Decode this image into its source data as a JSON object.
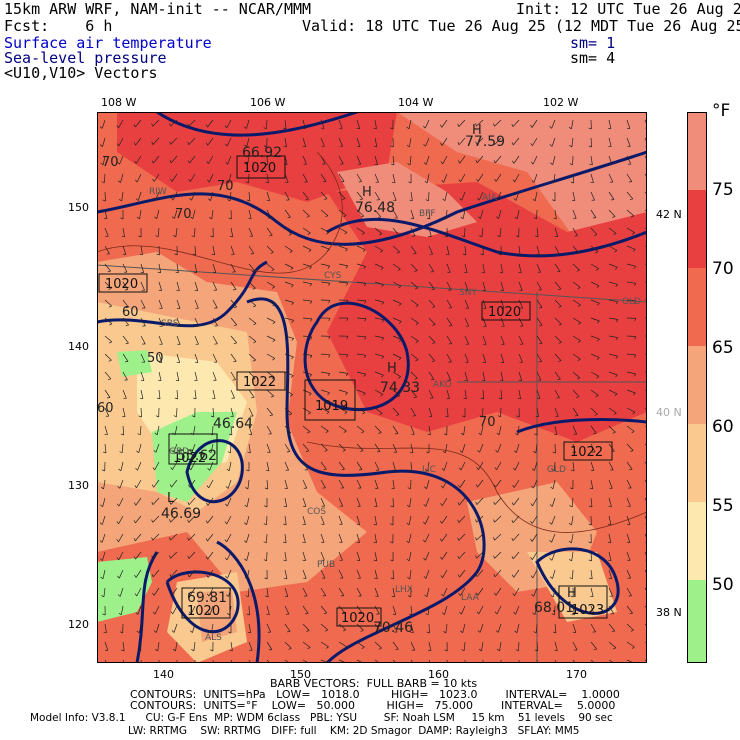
{
  "header": {
    "line1_left": "15km ARW WRF, NAM-init -- NCAR/MMM",
    "line1_right": "Init: 12 UTC Tue 26 Aug 25",
    "fcst": "Fcst:    6 h",
    "valid": "Valid: 18 UTC Tue 26 Aug 25 (12 MDT Tue 26 Aug 25)",
    "fields": [
      {
        "name": "Surface air temperature",
        "color": "#0000c8",
        "sm": ""
      },
      {
        "name": "Sea-level pressure",
        "color": "#000080",
        "sm": "sm= 1"
      },
      {
        "name": "<U10,V10> Vectors",
        "color": "#000000",
        "sm": "sm= 4"
      }
    ]
  },
  "axes": {
    "lon_labels": [
      "108 W",
      "106 W",
      "104 W",
      "102 W"
    ],
    "lat_labels": [
      "42 N",
      "40 N",
      "38 N"
    ],
    "y_grid_labels": [
      "150",
      "140",
      "130",
      "120"
    ],
    "x_grid_labels": [
      "140",
      "150",
      "160",
      "170"
    ]
  },
  "colorbar": {
    "unit": "°F",
    "labels": [
      "75",
      "70",
      "65",
      "60",
      "55",
      "50"
    ],
    "colors": [
      "#f08c7a",
      "#e84040",
      "#ef6a4f",
      "#f4a57a",
      "#f9c98f",
      "#fde8b0",
      "#fdf7d2",
      "#9ef08a"
    ]
  },
  "map_labels": {
    "temps": [
      "70",
      "70",
      "70",
      "60",
      "60",
      "50",
      "60",
      "50",
      "70"
    ],
    "highs": [
      {
        "letter": "H",
        "value": "77.59"
      },
      {
        "letter": "H",
        "value": "76.48"
      },
      {
        "letter": "H",
        "value": "74.33"
      },
      {
        "letter": "H",
        "value": "70.46"
      },
      {
        "letter": "H",
        "value": "68.01"
      }
    ],
    "lows": [
      {
        "letter": "L",
        "value": "46.64"
      },
      {
        "letter": "L",
        "value": "46.69"
      }
    ],
    "misc_values": [
      "66.92",
      "69.81",
      "55.62"
    ],
    "isobars": [
      "1020",
      "1020",
      "1020",
      "1022",
      "1019",
      "1022",
      "1020",
      "1020",
      "1023",
      "1022"
    ],
    "stations": [
      "RIW",
      "BFF",
      "AIA",
      "CYS",
      "SNY",
      "GLD",
      "SBS",
      "AKO",
      "LIC",
      "GLD",
      "COS",
      "PUB",
      "LHX",
      "LAA",
      "ALS",
      "GBD"
    ]
  },
  "footer": {
    "barb": "BARB VECTORS:  FULL BARB = 10 kts",
    "contours1": "CONTOURS:  UNITS=hPa   LOW=   1018.0         HIGH=   1023.0        INTERVAL=    1.0000",
    "contours2": "CONTOURS:  UNITS=°F    LOW=   50.000         HIGH=   75.000        INTERVAL=    5.0000",
    "model1": "Model Info: V3.8.1      CU: G-F Ens  MP: WDM 6class   PBL: YSU        SF: Noah LSM     15 km    51 levels    90 sec",
    "model2": "LW: RRTMG    SW: RRTMG   DIFF: full    KM: 2D Smagor  DAMP: Rayleigh3   SFLAY: MM5"
  }
}
